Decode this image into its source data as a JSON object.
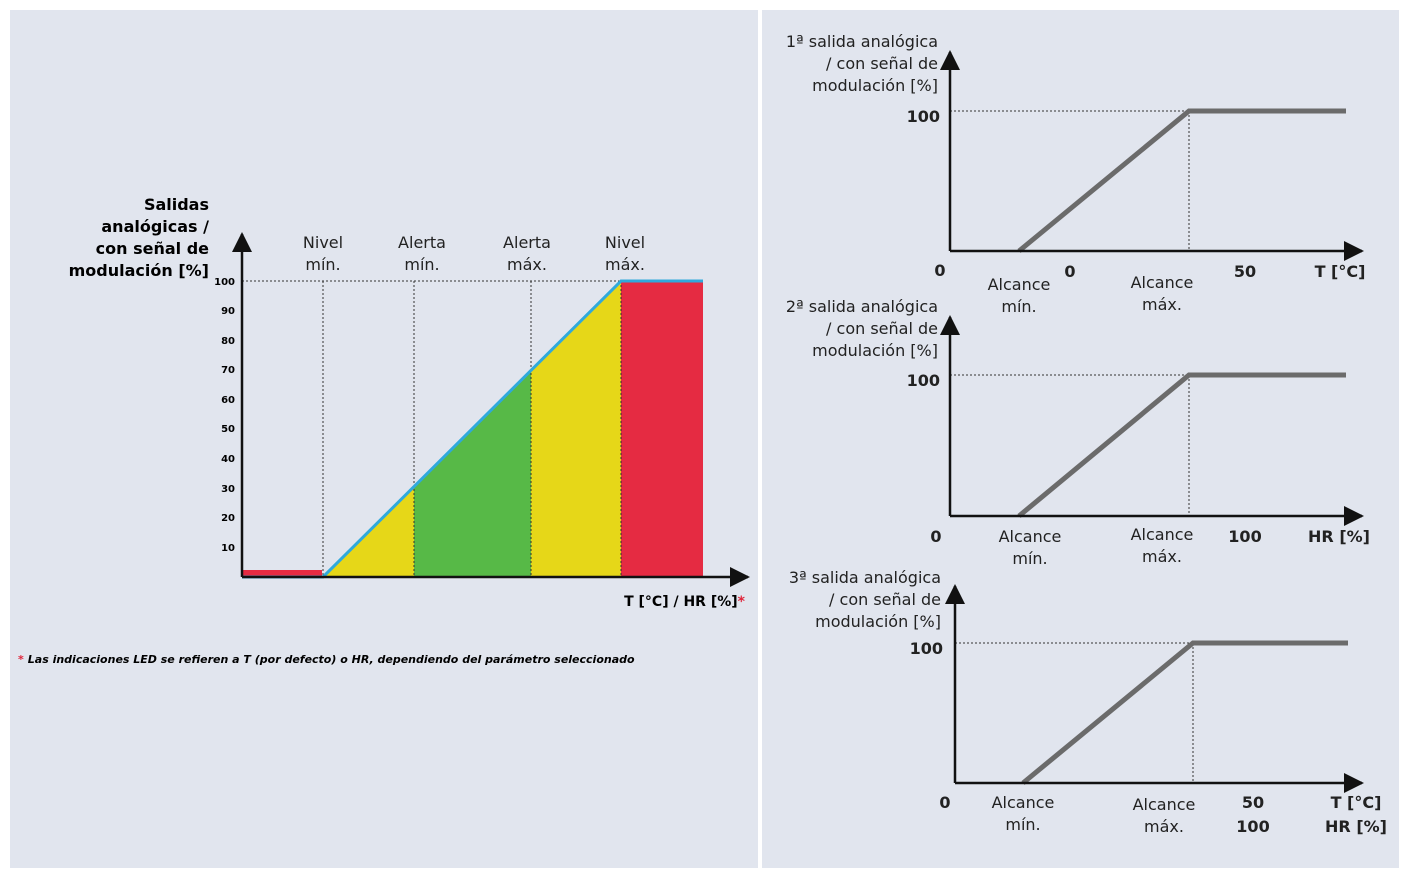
{
  "colors": {
    "background": "#e1e5ee",
    "red": "#e52b42",
    "yellow": "#e6d718",
    "green": "#57b947",
    "blue_line": "#2fa9dc",
    "grey_line": "#6b6b6b",
    "asterisk_red": "#e0253b"
  },
  "main_chart": {
    "y_axis_title": [
      "Salidas",
      "analógicas /",
      "con señal de",
      "modulación [%]"
    ],
    "y_ticks": [
      "100",
      "90",
      "80",
      "70",
      "60",
      "50",
      "40",
      "30",
      "20",
      "10"
    ],
    "x_axis_label": "T [°C] / HR [%]",
    "x_axis_asterisk": "*",
    "markers": [
      {
        "line1": "Nivel",
        "line2": "mín."
      },
      {
        "line1": "Alerta",
        "line2": "mín."
      },
      {
        "line1": "Alerta",
        "line2": "máx."
      },
      {
        "line1": "Nivel",
        "line2": "máx."
      }
    ],
    "zones": [
      {
        "color": "red",
        "from": 0,
        "to": 1
      },
      {
        "color": "yellow",
        "from": 1,
        "to": 2
      },
      {
        "color": "green",
        "from": 2,
        "to": 3
      },
      {
        "color": "yellow",
        "from": 3,
        "to": 4
      },
      {
        "color": "red",
        "from": 4,
        "to": 5
      }
    ],
    "marker_values": [
      0,
      30,
      70,
      100,
      100
    ]
  },
  "footnote": {
    "asterisk": "*",
    "text": "Las indicaciones LED se refieren a T (por defecto) o HR, dependiendo del parámetro seleccionado"
  },
  "small_charts": [
    {
      "title": [
        "1ª salida analógica",
        "/ con señal de",
        "modulación [%]"
      ],
      "y_label_100": "100",
      "origin_label": "0",
      "range_min": [
        "Alcance",
        "mín."
      ],
      "range_max": [
        "Alcance",
        "máx."
      ],
      "x_ticks": [
        {
          "text": "0"
        },
        {
          "text": "50"
        }
      ],
      "x_unit": [
        "T [°C]"
      ]
    },
    {
      "title": [
        "2ª salida analógica",
        "/ con señal de",
        "modulación [%]"
      ],
      "y_label_100": "100",
      "origin_label": "0",
      "range_min": [
        "Alcance",
        "mín."
      ],
      "range_max": [
        "Alcance",
        "máx."
      ],
      "x_ticks": [
        {
          "text": "100"
        }
      ],
      "x_unit": [
        "HR [%]"
      ]
    },
    {
      "title": [
        "3ª salida analógica",
        "/ con señal de",
        "modulación [%]"
      ],
      "y_label_100": "100",
      "origin_label": "0",
      "range_min": [
        "Alcance",
        "mín."
      ],
      "range_max": [
        "Alcance",
        "máx."
      ],
      "x_ticks": [
        {
          "text": "50"
        },
        {
          "text": "100"
        }
      ],
      "x_unit": [
        "T [°C]",
        "HR [%]"
      ]
    }
  ]
}
